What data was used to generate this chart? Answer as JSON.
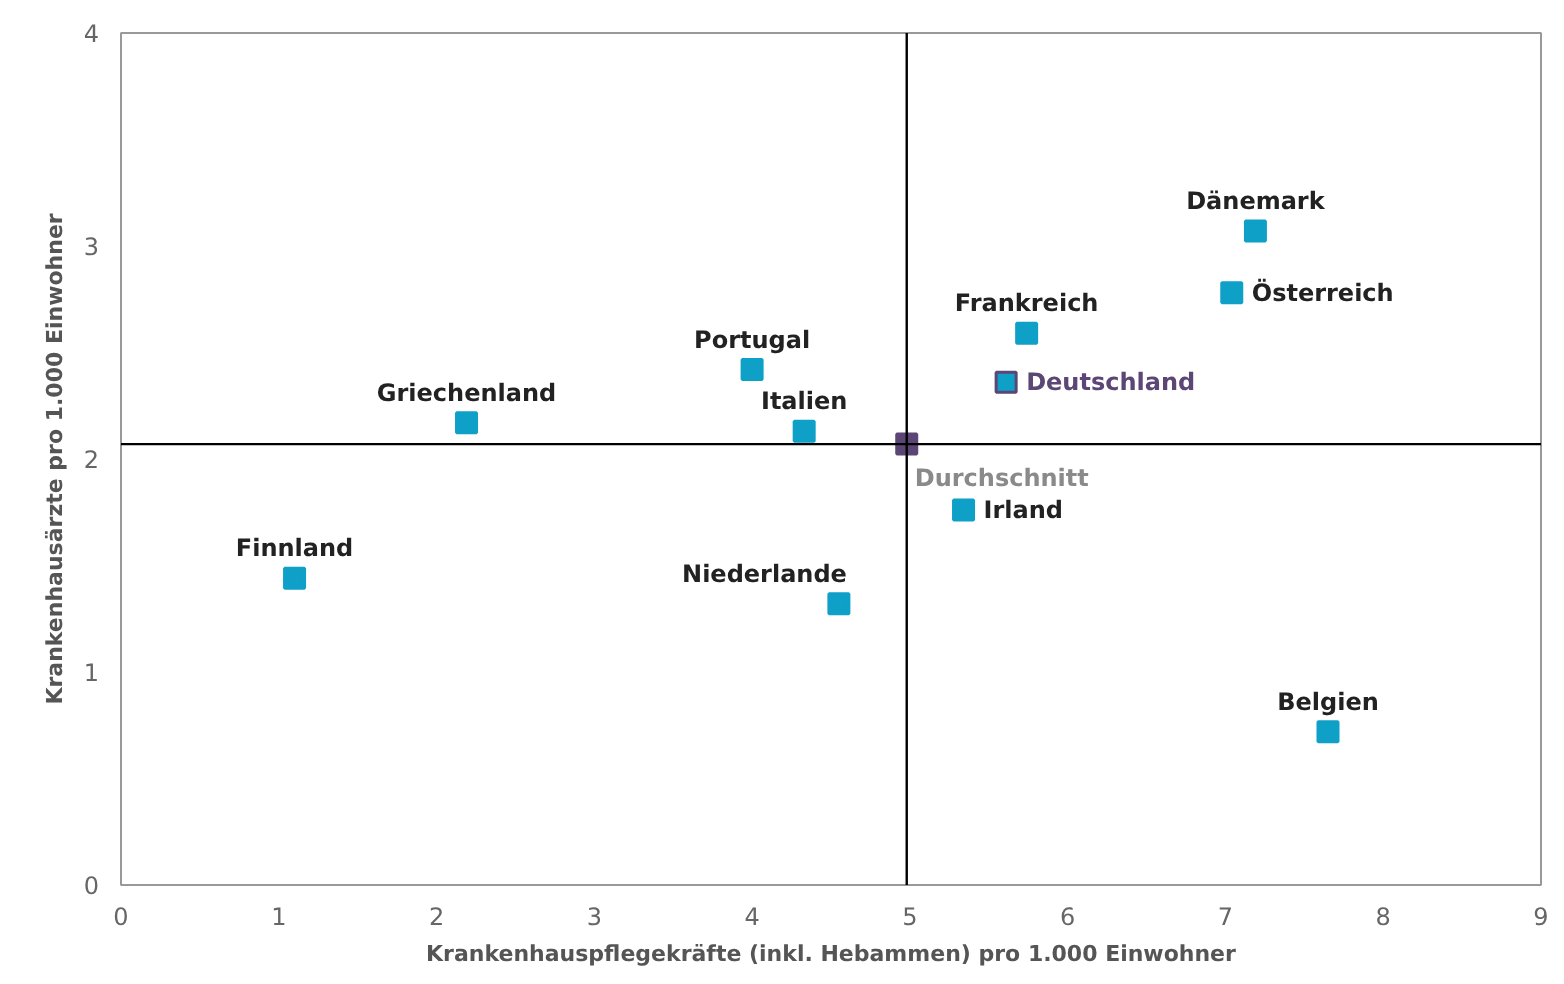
{
  "chart_data": {
    "type": "scatter",
    "marker": "square",
    "grid": false,
    "xlabel": "Krankenhauspflegekräfte (inkl. Hebammen) pro 1.000 Einwohner",
    "ylabel": "Krankenhausärzte pro 1.000 Einwohner",
    "xlim": [
      0,
      9
    ],
    "ylim": [
      0,
      4
    ],
    "xticks": [
      0,
      1,
      2,
      3,
      4,
      5,
      6,
      7,
      8,
      9
    ],
    "yticks": [
      0,
      1,
      2,
      3,
      4
    ],
    "ref_lines": [
      {
        "axis": "x",
        "value": 4.98,
        "label": null,
        "color": "#000000"
      },
      {
        "axis": "y",
        "value": 2.07,
        "label": null,
        "color": "#000000"
      }
    ],
    "series": [
      {
        "name": "Finnland",
        "color": "#0fa0c8",
        "x": [
          1.1
        ],
        "values": [
          1.44
        ]
      },
      {
        "name": "Griechenland",
        "color": "#0fa0c8",
        "x": [
          2.19
        ],
        "values": [
          2.17
        ]
      },
      {
        "name": "Portugal",
        "color": "#0fa0c8",
        "x": [
          4.0
        ],
        "values": [
          2.42
        ]
      },
      {
        "name": "Italien",
        "color": "#0fa0c8",
        "x": [
          4.33
        ],
        "values": [
          2.13
        ]
      },
      {
        "name": "Niederlande",
        "color": "#0fa0c8",
        "x": [
          4.55
        ],
        "values": [
          1.32
        ]
      },
      {
        "name": "Irland",
        "color": "#0fa0c8",
        "x": [
          5.34
        ],
        "values": [
          1.76
        ]
      },
      {
        "name": "Deutschland",
        "color": "#0fa0c8",
        "x": [
          5.61
        ],
        "values": [
          2.36
        ]
      },
      {
        "name": "Frankreich",
        "color": "#0fa0c8",
        "x": [
          5.74
        ],
        "values": [
          2.59
        ]
      },
      {
        "name": "Österreich",
        "color": "#0fa0c8",
        "x": [
          7.04
        ],
        "values": [
          2.78
        ]
      },
      {
        "name": "Dänemark",
        "color": "#0fa0c8",
        "x": [
          7.19
        ],
        "values": [
          3.07
        ]
      },
      {
        "name": "Belgien",
        "color": "#0fa0c8",
        "x": [
          7.65
        ],
        "values": [
          0.72
        ]
      },
      {
        "name": "Durchschnitt",
        "color": "#5b4675",
        "x": [
          4.98
        ],
        "values": [
          2.07
        ]
      }
    ]
  }
}
